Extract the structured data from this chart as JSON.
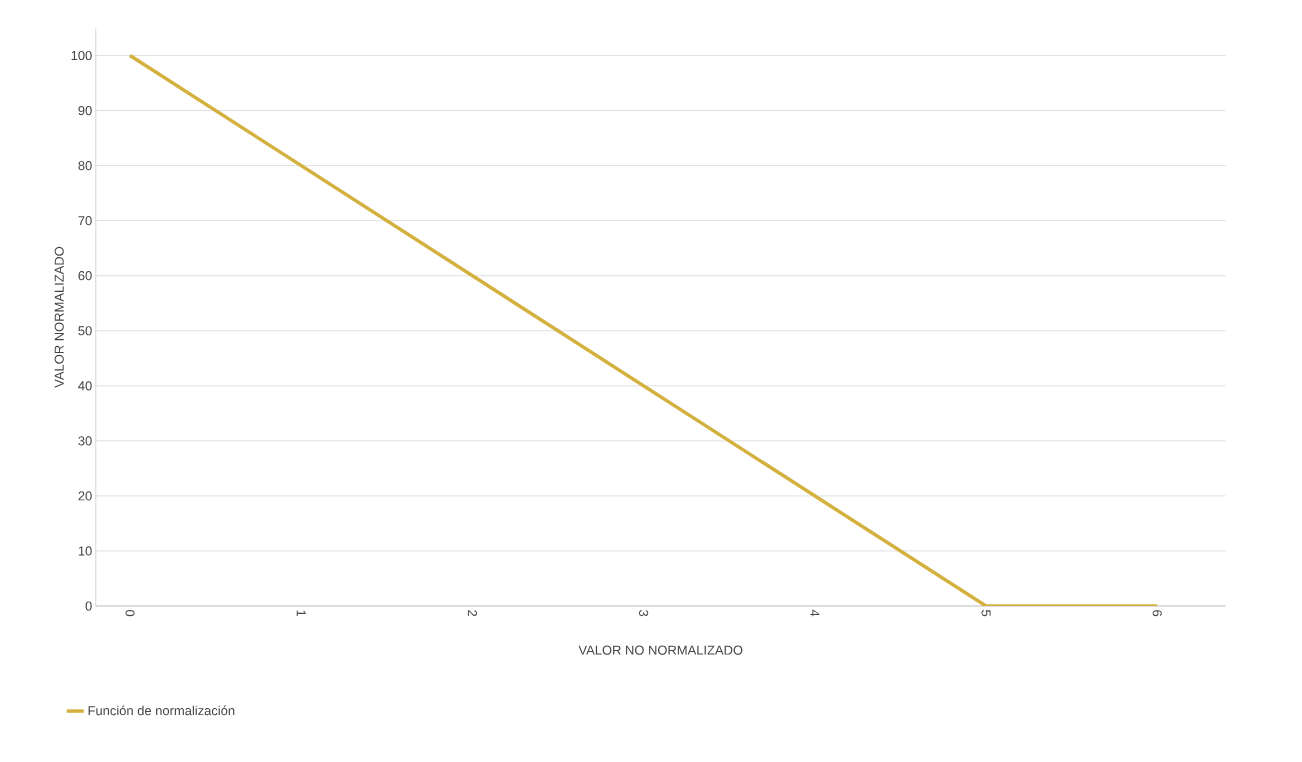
{
  "chart_data": {
    "type": "line",
    "xlabel": "VALOR NO NORMALIZADO",
    "ylabel": "VALOR NORMALIZADO",
    "x": [
      0,
      5,
      6
    ],
    "series": [
      {
        "name": "Función de normalización",
        "color": "#d4b13f",
        "values": [
          100,
          0,
          0
        ]
      }
    ],
    "xlim": [
      -0.2,
      6.4
    ],
    "xticks": [
      0,
      1,
      2,
      3,
      4,
      5,
      6
    ],
    "ylim": [
      0,
      105
    ],
    "yticks": [
      0,
      10,
      20,
      30,
      40,
      50,
      60,
      70,
      80,
      90,
      100
    ],
    "grid": "y",
    "legend": "bottom left",
    "marker": "none",
    "line_style": "solid"
  }
}
